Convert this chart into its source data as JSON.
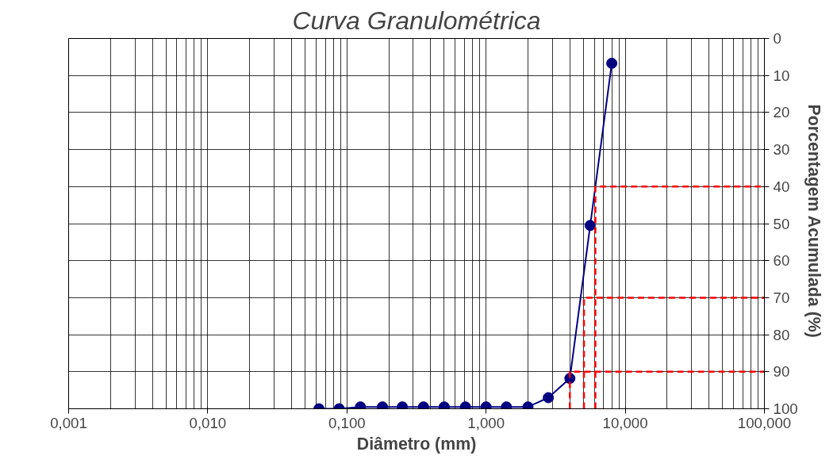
{
  "chart_data": {
    "type": "line",
    "title": "Curva Granulométrica",
    "xlabel": "Diâmetro (mm)",
    "y2label": "Porcentagem  Acumulada (%)",
    "log": "x",
    "grid": true,
    "marker": "circle",
    "line_style": "solid",
    "xlim": [
      0.001,
      100
    ],
    "xticks": [
      {
        "value": 0.001,
        "label": "0,001"
      },
      {
        "value": 0.01,
        "label": "0,010"
      },
      {
        "value": 0.1,
        "label": "0,100"
      },
      {
        "value": 1,
        "label": "1,000"
      },
      {
        "value": 10,
        "label": "10,000"
      },
      {
        "value": 100,
        "label": "100,000"
      }
    ],
    "y2lim": [
      100,
      0
    ],
    "y2ticks": [
      0,
      10,
      20,
      30,
      40,
      50,
      60,
      70,
      80,
      90,
      100
    ],
    "series": [
      {
        "color": "#000080",
        "axis": "y2",
        "x": [
          0.063,
          0.088,
          0.125,
          0.18,
          0.25,
          0.355,
          0.5,
          0.71,
          1.0,
          1.4,
          2.0,
          2.8,
          4.0,
          5.6,
          8.0
        ],
        "values": [
          100,
          100,
          99.5,
          99.5,
          99.5,
          99.5,
          99.5,
          99.5,
          99.5,
          99.5,
          99.5,
          97,
          91.8,
          50.5,
          6.7
        ]
      },
      {
        "type": "line",
        "marker": "none",
        "line_style": "dashed",
        "color": "#ff0000",
        "axis": "y2",
        "x": [
          4.0,
          4.0,
          100
        ],
        "values": [
          100,
          90,
          90
        ]
      },
      {
        "type": "line",
        "marker": "none",
        "line_style": "dashed",
        "color": "#ff0000",
        "axis": "y2",
        "x": [
          5.05,
          5.05,
          100
        ],
        "values": [
          100,
          70,
          70
        ]
      },
      {
        "type": "line",
        "marker": "none",
        "line_style": "dashed",
        "color": "#ff0000",
        "axis": "y2",
        "x": [
          6.1,
          6.1,
          100
        ],
        "values": [
          100,
          40,
          40
        ]
      }
    ]
  }
}
